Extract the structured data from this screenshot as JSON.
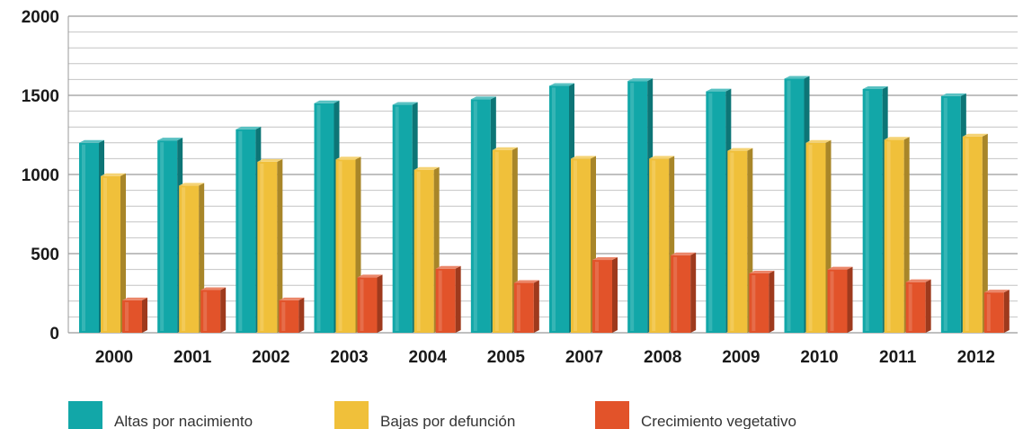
{
  "chart_data": {
    "type": "bar",
    "categories": [
      "2000",
      "2001",
      "2002",
      "2003",
      "2004",
      "2005",
      "2007",
      "2008",
      "2009",
      "2010",
      "2011",
      "2012"
    ],
    "series": [
      {
        "name": "Altas por nacimiento",
        "color": "#12a7a8",
        "values": [
          1200,
          1215,
          1285,
          1450,
          1440,
          1475,
          1560,
          1590,
          1525,
          1605,
          1540,
          1495
        ]
      },
      {
        "name": "Bajas por defunción",
        "color": "#f0c03a",
        "values": [
          990,
          930,
          1080,
          1095,
          1030,
          1155,
          1100,
          1100,
          1150,
          1200,
          1220,
          1240
        ]
      },
      {
        "name": "Crecimiento vegetativo",
        "color": "#e2532a",
        "values": [
          205,
          270,
          205,
          350,
          405,
          315,
          460,
          490,
          375,
          400,
          320,
          255
        ]
      }
    ],
    "y_ticks": [
      "0",
      "500",
      "1000",
      "1500",
      "2000"
    ],
    "ylim": [
      0,
      2000
    ],
    "grid": true,
    "legend_position": "bottom"
  }
}
